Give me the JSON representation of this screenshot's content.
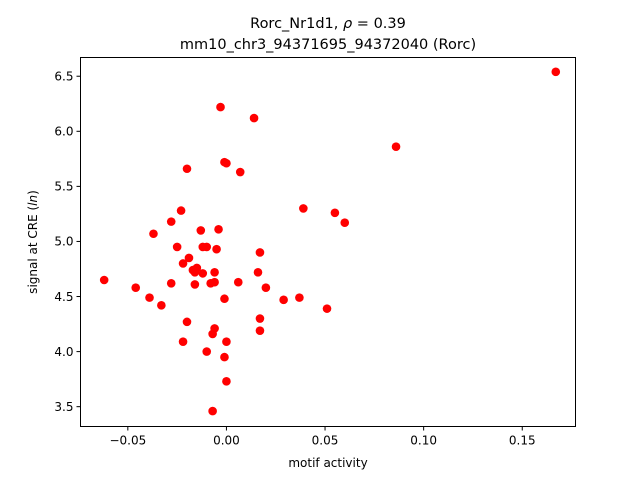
{
  "chart_data": {
    "type": "scatter",
    "title_line1_prefix": "Rorc_Nr1d1, ",
    "title_line1_rho": "ρ",
    "title_line1_suffix": " = 0.39",
    "title_line2": "mm10_chr3_94371695_94372040 (Rorc)",
    "xlabel": "motif activity",
    "ylabel_prefix": "signal at CRE (",
    "ylabel_italic": "ln",
    "ylabel_suffix": ")",
    "xlim": [
      -0.074,
      0.177
    ],
    "ylim": [
      3.32,
      6.67
    ],
    "xticks": [
      -0.05,
      0.0,
      0.05,
      0.1,
      0.15
    ],
    "xtick_labels": [
      "−0.05",
      "0.00",
      "0.05",
      "0.10",
      "0.15"
    ],
    "yticks": [
      3.5,
      4.0,
      4.5,
      5.0,
      5.5,
      6.0,
      6.5
    ],
    "ytick_labels": [
      "3.5",
      "4.0",
      "4.5",
      "5.0",
      "5.5",
      "6.0",
      "6.5"
    ],
    "marker_color": "#ff0000",
    "grid": false,
    "points": [
      {
        "x": 0.167,
        "y": 6.54
      },
      {
        "x": -0.003,
        "y": 6.22
      },
      {
        "x": 0.014,
        "y": 6.12
      },
      {
        "x": 0.086,
        "y": 5.86
      },
      {
        "x": -0.001,
        "y": 5.72
      },
      {
        "x": 0.0,
        "y": 5.71
      },
      {
        "x": -0.02,
        "y": 5.66
      },
      {
        "x": 0.007,
        "y": 5.63
      },
      {
        "x": 0.039,
        "y": 5.3
      },
      {
        "x": -0.023,
        "y": 5.28
      },
      {
        "x": 0.055,
        "y": 5.26
      },
      {
        "x": -0.028,
        "y": 5.18
      },
      {
        "x": 0.06,
        "y": 5.17
      },
      {
        "x": -0.004,
        "y": 5.11
      },
      {
        "x": -0.013,
        "y": 5.1
      },
      {
        "x": -0.037,
        "y": 5.07
      },
      {
        "x": -0.025,
        "y": 4.95
      },
      {
        "x": -0.012,
        "y": 4.95
      },
      {
        "x": -0.01,
        "y": 4.95
      },
      {
        "x": -0.005,
        "y": 4.93
      },
      {
        "x": 0.017,
        "y": 4.9
      },
      {
        "x": -0.019,
        "y": 4.85
      },
      {
        "x": -0.022,
        "y": 4.8
      },
      {
        "x": -0.017,
        "y": 4.74
      },
      {
        "x": -0.015,
        "y": 4.76
      },
      {
        "x": -0.016,
        "y": 4.72
      },
      {
        "x": -0.012,
        "y": 4.71
      },
      {
        "x": -0.006,
        "y": 4.72
      },
      {
        "x": 0.016,
        "y": 4.72
      },
      {
        "x": -0.062,
        "y": 4.65
      },
      {
        "x": -0.028,
        "y": 4.62
      },
      {
        "x": -0.016,
        "y": 4.61
      },
      {
        "x": -0.008,
        "y": 4.62
      },
      {
        "x": -0.006,
        "y": 4.63
      },
      {
        "x": 0.006,
        "y": 4.63
      },
      {
        "x": -0.046,
        "y": 4.58
      },
      {
        "x": 0.02,
        "y": 4.58
      },
      {
        "x": -0.039,
        "y": 4.49
      },
      {
        "x": 0.037,
        "y": 4.49
      },
      {
        "x": -0.001,
        "y": 4.48
      },
      {
        "x": 0.029,
        "y": 4.47
      },
      {
        "x": -0.033,
        "y": 4.42
      },
      {
        "x": 0.051,
        "y": 4.39
      },
      {
        "x": 0.017,
        "y": 4.3
      },
      {
        "x": -0.02,
        "y": 4.27
      },
      {
        "x": -0.006,
        "y": 4.21
      },
      {
        "x": 0.017,
        "y": 4.19
      },
      {
        "x": -0.007,
        "y": 4.16
      },
      {
        "x": -0.022,
        "y": 4.09
      },
      {
        "x": 0.0,
        "y": 4.09
      },
      {
        "x": -0.01,
        "y": 4.0
      },
      {
        "x": -0.001,
        "y": 3.95
      },
      {
        "x": 0.0,
        "y": 3.73
      },
      {
        "x": -0.007,
        "y": 3.46
      }
    ]
  }
}
